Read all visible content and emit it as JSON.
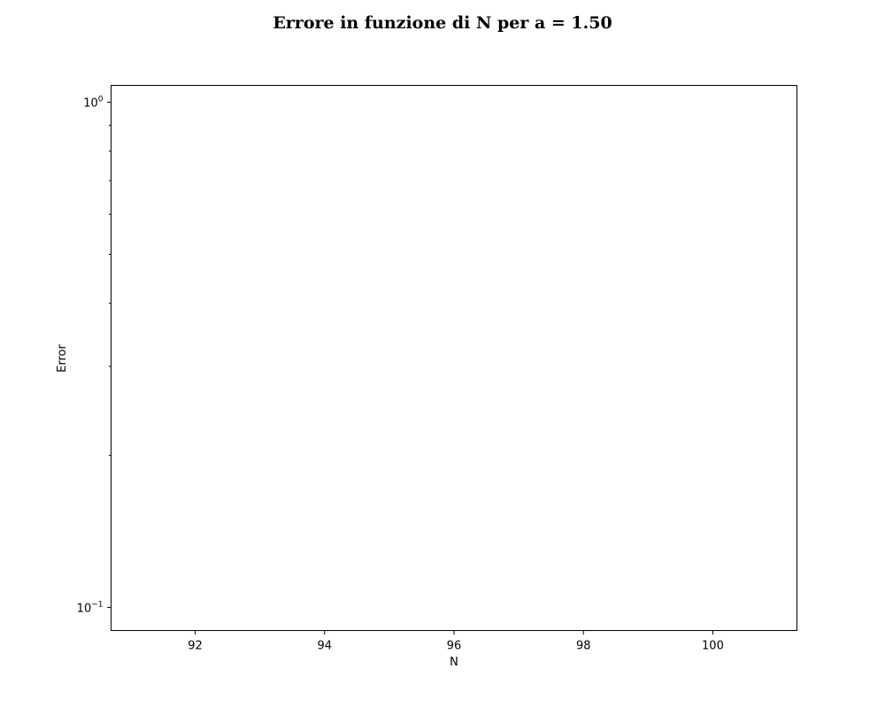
{
  "chart_data": {
    "type": "line",
    "title": "Errore in funzione di N per a = 1.50",
    "xlabel": "N",
    "ylabel": "Error",
    "xscale": "linear",
    "yscale": "log",
    "xlim": [
      90.7,
      101.3
    ],
    "ylim": [
      0.09,
      1.08
    ],
    "grid": false,
    "legend": "none",
    "xticks": [
      {
        "value": 92,
        "label": "92"
      },
      {
        "value": 94,
        "label": "94"
      },
      {
        "value": 96,
        "label": "96"
      },
      {
        "value": 98,
        "label": "98"
      },
      {
        "value": 100,
        "label": "100"
      }
    ],
    "yticks": [
      {
        "value": 1,
        "base": "10",
        "exp": "0"
      },
      {
        "value": 0.1,
        "base": "10",
        "exp": "−1"
      }
    ],
    "yminor": [
      0.2,
      0.3,
      0.4,
      0.5,
      0.6,
      0.7,
      0.8,
      0.9
    ],
    "series": []
  }
}
